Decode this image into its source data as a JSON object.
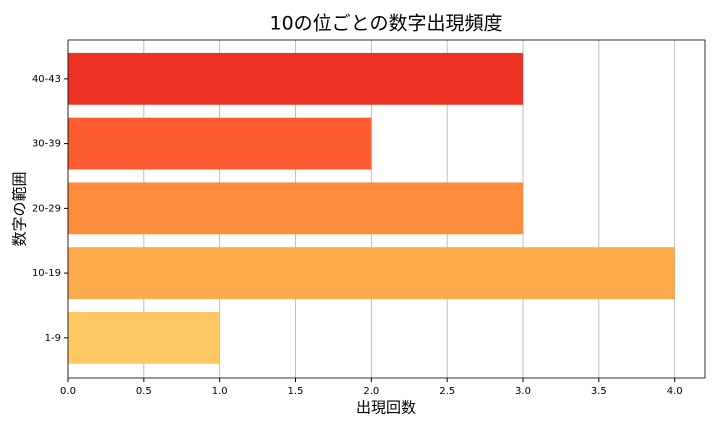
{
  "chart_data": {
    "type": "barh",
    "title": "10の位ごとの数字出現頻度",
    "x_label": "出現回数",
    "y_label": "数字の範囲",
    "categories": [
      "1-9",
      "10-19",
      "20-29",
      "30-39",
      "40-43"
    ],
    "values": [
      1,
      4,
      3,
      2,
      3
    ],
    "colors": [
      "#fec965",
      "#fdaa4a",
      "#fd8d3c",
      "#fc5a2f",
      "#ee3223"
    ],
    "xlim": [
      0,
      4.2
    ],
    "xticks": [
      {
        "value": 0,
        "label": "0.0"
      },
      {
        "value": 0.5,
        "label": "0.5"
      },
      {
        "value": 1,
        "label": "1.0"
      },
      {
        "value": 1.5,
        "label": "1.5"
      },
      {
        "value": 2,
        "label": "2.0"
      },
      {
        "value": 2.5,
        "label": "2.5"
      },
      {
        "value": 3,
        "label": "3.0"
      },
      {
        "value": 3.5,
        "label": "3.5"
      },
      {
        "value": 4,
        "label": "4.0"
      }
    ],
    "grid": true
  }
}
